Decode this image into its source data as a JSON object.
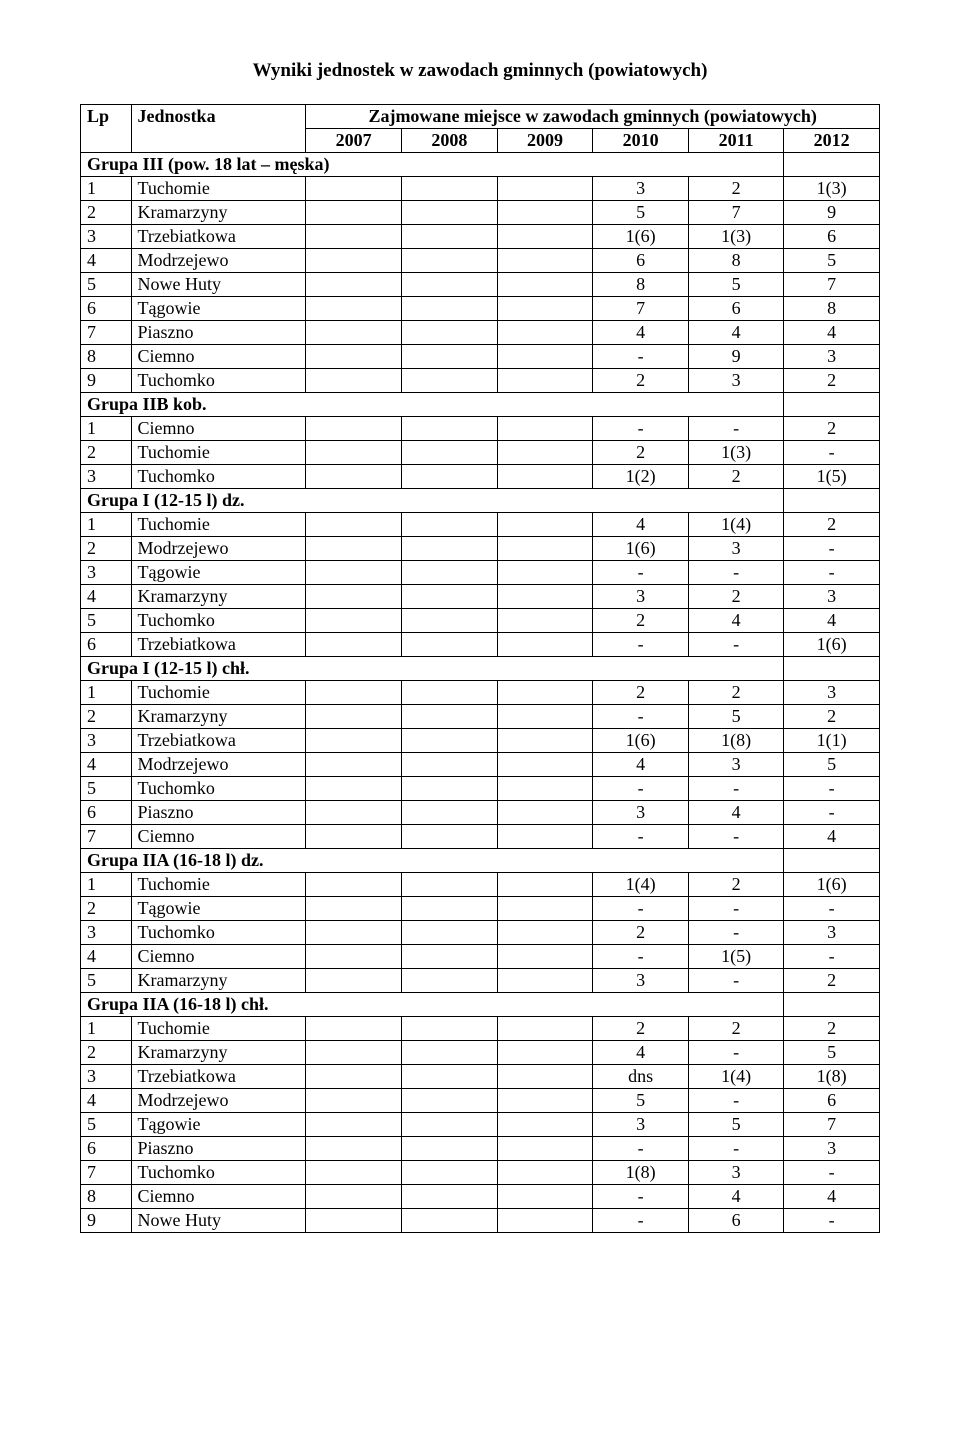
{
  "title": "Wyniki jednostek w zawodach gminnych (powiatowych)",
  "header": {
    "lp": "Lp",
    "unit": "Jednostka",
    "span_label": "Zajmowane miejsce w zawodach gminnych (powiatowych)",
    "years": [
      "2007",
      "2008",
      "2009",
      "2010",
      "2011",
      "2012"
    ]
  },
  "sections": [
    {
      "title": "Grupa III (pow. 18 lat – męska)",
      "rows": [
        {
          "lp": "1",
          "unit": "Tuchomie",
          "y": [
            "",
            "",
            "",
            "3",
            "2",
            "1(3)"
          ]
        },
        {
          "lp": "2",
          "unit": "Kramarzyny",
          "y": [
            "",
            "",
            "",
            "5",
            "7",
            "9"
          ]
        },
        {
          "lp": "3",
          "unit": "Trzebiatkowa",
          "y": [
            "",
            "",
            "",
            "1(6)",
            "1(3)",
            "6"
          ]
        },
        {
          "lp": "4",
          "unit": "Modrzejewo",
          "y": [
            "",
            "",
            "",
            "6",
            "8",
            "5"
          ]
        },
        {
          "lp": "5",
          "unit": "Nowe Huty",
          "y": [
            "",
            "",
            "",
            "8",
            "5",
            "7"
          ]
        },
        {
          "lp": "6",
          "unit": "Tągowie",
          "y": [
            "",
            "",
            "",
            "7",
            "6",
            "8"
          ]
        },
        {
          "lp": "7",
          "unit": "Piaszno",
          "y": [
            "",
            "",
            "",
            "4",
            "4",
            "4"
          ]
        },
        {
          "lp": "8",
          "unit": "Ciemno",
          "y": [
            "",
            "",
            "",
            "-",
            "9",
            "3"
          ]
        },
        {
          "lp": "9",
          "unit": "Tuchomko",
          "y": [
            "",
            "",
            "",
            "2",
            "3",
            "2"
          ]
        }
      ]
    },
    {
      "title": "Grupa IIB kob.",
      "rows": [
        {
          "lp": "1",
          "unit": "Ciemno",
          "y": [
            "",
            "",
            "",
            "-",
            "-",
            "2"
          ]
        },
        {
          "lp": "2",
          "unit": "Tuchomie",
          "y": [
            "",
            "",
            "",
            "2",
            "1(3)",
            "-"
          ]
        },
        {
          "lp": "3",
          "unit": "Tuchomko",
          "y": [
            "",
            "",
            "",
            "1(2)",
            "2",
            "1(5)"
          ]
        }
      ]
    },
    {
      "title": "Grupa I (12-15 l) dz.",
      "rows": [
        {
          "lp": "1",
          "unit": "Tuchomie",
          "y": [
            "",
            "",
            "",
            "4",
            "1(4)",
            "2"
          ]
        },
        {
          "lp": "2",
          "unit": "Modrzejewo",
          "y": [
            "",
            "",
            "",
            "1(6)",
            "3",
            "-"
          ]
        },
        {
          "lp": "3",
          "unit": "Tągowie",
          "y": [
            "",
            "",
            "",
            "-",
            "-",
            "-"
          ]
        },
        {
          "lp": "4",
          "unit": "Kramarzyny",
          "y": [
            "",
            "",
            "",
            "3",
            "2",
            "3"
          ]
        },
        {
          "lp": "5",
          "unit": "Tuchomko",
          "y": [
            "",
            "",
            "",
            "2",
            "4",
            "4"
          ]
        },
        {
          "lp": "6",
          "unit": "Trzebiatkowa",
          "y": [
            "",
            "",
            "",
            "-",
            "-",
            "1(6)"
          ]
        }
      ]
    },
    {
      "title": "Grupa I (12-15 l) chł.",
      "rows": [
        {
          "lp": "1",
          "unit": "Tuchomie",
          "y": [
            "",
            "",
            "",
            "2",
            "2",
            "3"
          ]
        },
        {
          "lp": "2",
          "unit": "Kramarzyny",
          "y": [
            "",
            "",
            "",
            "-",
            "5",
            "2"
          ]
        },
        {
          "lp": "3",
          "unit": "Trzebiatkowa",
          "y": [
            "",
            "",
            "",
            "1(6)",
            "1(8)",
            "1(1)"
          ]
        },
        {
          "lp": "4",
          "unit": "Modrzejewo",
          "y": [
            "",
            "",
            "",
            "4",
            "3",
            "5"
          ]
        },
        {
          "lp": "5",
          "unit": "Tuchomko",
          "y": [
            "",
            "",
            "",
            "-",
            "-",
            "-"
          ]
        },
        {
          "lp": "6",
          "unit": "Piaszno",
          "y": [
            "",
            "",
            "",
            "3",
            "4",
            "-"
          ]
        },
        {
          "lp": "7",
          "unit": "Ciemno",
          "y": [
            "",
            "",
            "",
            "-",
            "-",
            "4"
          ]
        }
      ]
    },
    {
      "title": "Grupa IIA (16-18 l) dz.",
      "rows": [
        {
          "lp": "1",
          "unit": "Tuchomie",
          "y": [
            "",
            "",
            "",
            "1(4)",
            "2",
            "1(6)"
          ]
        },
        {
          "lp": "2",
          "unit": "Tągowie",
          "y": [
            "",
            "",
            "",
            "-",
            "-",
            "-"
          ]
        },
        {
          "lp": "3",
          "unit": "Tuchomko",
          "y": [
            "",
            "",
            "",
            "2",
            "-",
            "3"
          ]
        },
        {
          "lp": "4",
          "unit": "Ciemno",
          "y": [
            "",
            "",
            "",
            "-",
            "1(5)",
            "-"
          ]
        },
        {
          "lp": "5",
          "unit": "Kramarzyny",
          "y": [
            "",
            "",
            "",
            "3",
            "-",
            "2"
          ]
        }
      ]
    },
    {
      "title": "Grupa IIA (16-18 l) chł.",
      "rows": [
        {
          "lp": "1",
          "unit": "Tuchomie",
          "y": [
            "",
            "",
            "",
            "2",
            "2",
            "2"
          ]
        },
        {
          "lp": "2",
          "unit": "Kramarzyny",
          "y": [
            "",
            "",
            "",
            "4",
            "-",
            "5"
          ]
        },
        {
          "lp": "3",
          "unit": "Trzebiatkowa",
          "y": [
            "",
            "",
            "",
            "dns",
            "1(4)",
            "1(8)"
          ]
        },
        {
          "lp": "4",
          "unit": "Modrzejewo",
          "y": [
            "",
            "",
            "",
            "5",
            "-",
            "6"
          ]
        },
        {
          "lp": "5",
          "unit": "Tągowie",
          "y": [
            "",
            "",
            "",
            "3",
            "5",
            "7"
          ]
        },
        {
          "lp": "6",
          "unit": "Piaszno",
          "y": [
            "",
            "",
            "",
            "-",
            "-",
            "3"
          ]
        },
        {
          "lp": "7",
          "unit": "Tuchomko",
          "y": [
            "",
            "",
            "",
            "1(8)",
            "3",
            "-"
          ]
        },
        {
          "lp": "8",
          "unit": "Ciemno",
          "y": [
            "",
            "",
            "",
            "-",
            "4",
            "4"
          ]
        },
        {
          "lp": "9",
          "unit": "Nowe Huty",
          "y": [
            "",
            "",
            "",
            "-",
            "6",
            "-"
          ]
        }
      ]
    }
  ],
  "style": {
    "font_family": "Times New Roman",
    "title_fontsize": 19,
    "table_fontsize": 18,
    "border_color": "#000000",
    "background_color": "#ffffff",
    "text_color": "#000000"
  }
}
